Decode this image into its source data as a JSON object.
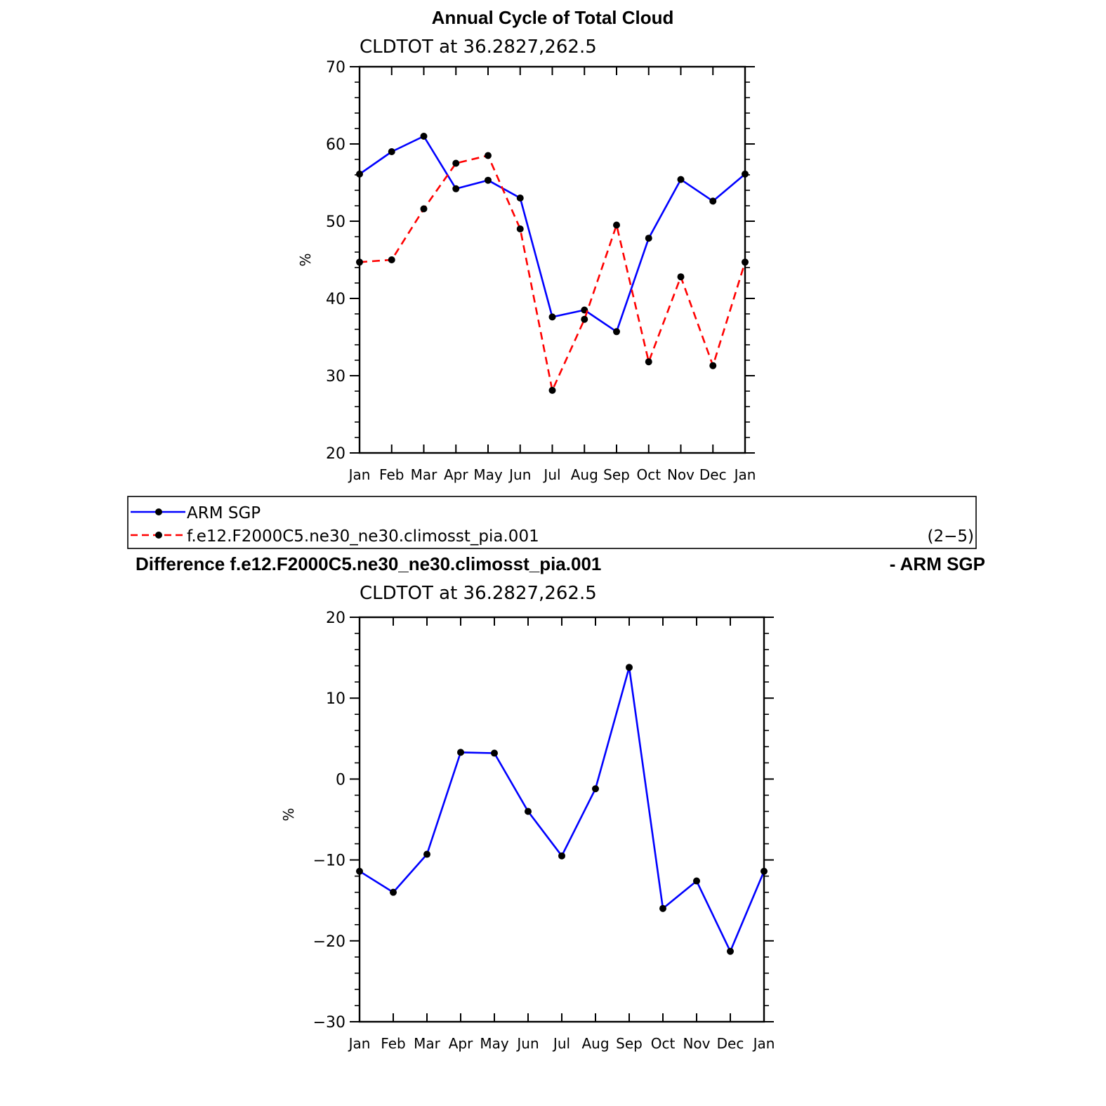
{
  "figure": {
    "title": "Annual Cycle of Total Cloud",
    "legend_tag": "(2−5)"
  },
  "chart_data": [
    {
      "type": "line",
      "title": "Annual Cycle of Total Cloud",
      "subtitle": "CLDTOT at 36.2827,262.5",
      "xlabel": "",
      "ylabel": "%",
      "categories": [
        "Jan",
        "Feb",
        "Mar",
        "Apr",
        "May",
        "Jun",
        "Jul",
        "Aug",
        "Sep",
        "Oct",
        "Nov",
        "Dec",
        "Jan"
      ],
      "ylim": [
        20,
        70
      ],
      "yticks": [
        20,
        30,
        40,
        50,
        60,
        70
      ],
      "legend": "bottom",
      "grid": false,
      "series": [
        {
          "name": "ARM SGP",
          "color": "#0000ff",
          "dash": "solid",
          "values": [
            56.1,
            59.0,
            61.0,
            54.2,
            55.3,
            53.0,
            37.6,
            38.5,
            35.7,
            47.8,
            55.4,
            52.6,
            56.1
          ]
        },
        {
          "name": "f.e12.F2000C5.ne30_ne30.climosst_pia.001",
          "color": "#ff0000",
          "dash": "dashed",
          "values": [
            44.7,
            45.0,
            51.6,
            57.5,
            58.5,
            49.0,
            28.1,
            37.3,
            49.5,
            31.8,
            42.8,
            31.3,
            44.7
          ]
        }
      ]
    },
    {
      "type": "line",
      "title": "Difference f.e12.F2000C5.ne30_ne30.climosst_pia.001 - ARM SGP",
      "title_left": "Difference f.e12.F2000C5.ne30_ne30.climosst_pia.001",
      "title_right": "- ARM SGP",
      "subtitle": "CLDTOT at 36.2827,262.5",
      "xlabel": "",
      "ylabel": "%",
      "categories": [
        "Jan",
        "Feb",
        "Mar",
        "Apr",
        "May",
        "Jun",
        "Jul",
        "Aug",
        "Sep",
        "Oct",
        "Nov",
        "Dec",
        "Jan"
      ],
      "ylim": [
        -30,
        20
      ],
      "yticks": [
        -30,
        -20,
        -10,
        0,
        10,
        20
      ],
      "grid": false,
      "series": [
        {
          "color": "#0000ff",
          "dash": "solid",
          "values": [
            -11.4,
            -14.0,
            -9.3,
            3.3,
            3.2,
            -4.0,
            -9.5,
            -1.2,
            13.8,
            -16.0,
            -12.6,
            -21.3,
            -11.4
          ]
        }
      ]
    }
  ]
}
